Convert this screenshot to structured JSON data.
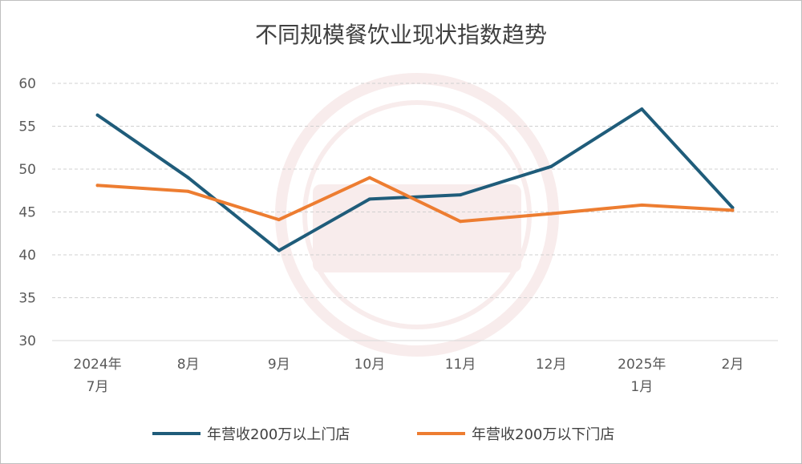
{
  "chart_data": {
    "type": "line",
    "title": "不同规模餐饮业现状指数趋势",
    "categories": [
      [
        "2024年",
        "7月"
      ],
      [
        "8月"
      ],
      [
        "9月"
      ],
      [
        "10月"
      ],
      [
        "11月"
      ],
      [
        "12月"
      ],
      [
        "2025年",
        "1月"
      ],
      [
        "2月"
      ]
    ],
    "ylim": [
      30,
      60
    ],
    "yticks": [
      30,
      35,
      40,
      45,
      50,
      55,
      60
    ],
    "grid": true,
    "legend_position": "bottom",
    "series": [
      {
        "name": "年营收200万以上门店",
        "color": "#1f5c7a",
        "values": [
          56.3,
          49.0,
          40.5,
          46.5,
          47.0,
          50.3,
          57.0,
          45.5
        ]
      },
      {
        "name": "年营收200万以下门店",
        "color": "#ed7d31",
        "values": [
          48.1,
          47.4,
          44.1,
          49.0,
          43.9,
          44.8,
          45.8,
          45.2
        ]
      }
    ]
  }
}
